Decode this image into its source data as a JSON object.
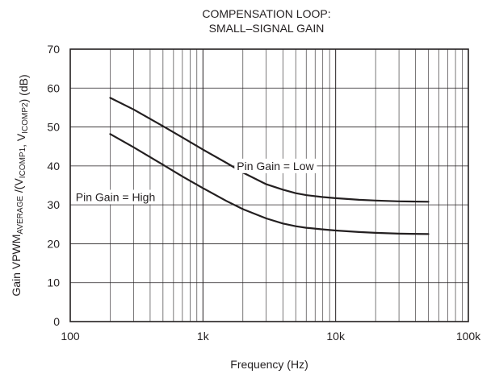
{
  "chart_data": {
    "type": "line",
    "title_lines": [
      "COMPENSATION LOOP:",
      "SMALL–SIGNAL GAIN"
    ],
    "xlabel": "Frequency (Hz)",
    "ylabel": {
      "parts": [
        {
          "text": "Gain VPWM",
          "sub": false
        },
        {
          "text": "AVERAGE",
          "sub": true
        },
        {
          "text": " /(V",
          "sub": false
        },
        {
          "text": "ICOMP1",
          "sub": true
        },
        {
          "text": ", V",
          "sub": false
        },
        {
          "text": "ICOMP2",
          "sub": true
        },
        {
          "text": ") (dB)",
          "sub": false
        }
      ]
    },
    "x_scale": "log",
    "xlim": [
      100,
      100000
    ],
    "ylim": [
      0,
      70
    ],
    "x_ticks": [
      {
        "value": 100,
        "label": "100"
      },
      {
        "value": 1000,
        "label": "1k"
      },
      {
        "value": 10000,
        "label": "10k"
      },
      {
        "value": 100000,
        "label": "100k"
      }
    ],
    "y_ticks": [
      0,
      10,
      20,
      30,
      40,
      50,
      60,
      70
    ],
    "grid": true,
    "series": [
      {
        "name": "Pin Gain = Low",
        "color": "#231f20",
        "points": [
          [
            200,
            57.5
          ],
          [
            300,
            54.5
          ],
          [
            500,
            50.2
          ],
          [
            700,
            47.3
          ],
          [
            1000,
            44.2
          ],
          [
            1500,
            40.8
          ],
          [
            2000,
            38.3
          ],
          [
            3000,
            35.3
          ],
          [
            4000,
            33.9
          ],
          [
            5000,
            33.0
          ],
          [
            6000,
            32.5
          ],
          [
            8000,
            32.0
          ],
          [
            10000,
            31.7
          ],
          [
            15000,
            31.3
          ],
          [
            20000,
            31.1
          ],
          [
            30000,
            30.9
          ],
          [
            50000,
            30.8
          ]
        ]
      },
      {
        "name": "Pin Gain = High",
        "color": "#231f20",
        "points": [
          [
            200,
            48.2
          ],
          [
            300,
            44.8
          ],
          [
            500,
            40.3
          ],
          [
            700,
            37.3
          ],
          [
            1000,
            34.3
          ],
          [
            1500,
            31.0
          ],
          [
            2000,
            28.9
          ],
          [
            3000,
            26.5
          ],
          [
            4000,
            25.2
          ],
          [
            5000,
            24.5
          ],
          [
            6000,
            24.1
          ],
          [
            8000,
            23.7
          ],
          [
            10000,
            23.4
          ],
          [
            15000,
            23.0
          ],
          [
            20000,
            22.8
          ],
          [
            30000,
            22.6
          ],
          [
            50000,
            22.5
          ]
        ]
      }
    ],
    "annotations": [
      {
        "text": "Pin Gain = Low",
        "x": 1800,
        "y": 40,
        "anchor": "start"
      },
      {
        "text": "Pin Gain = High",
        "x": 110,
        "y": 32,
        "anchor": "start"
      }
    ]
  }
}
